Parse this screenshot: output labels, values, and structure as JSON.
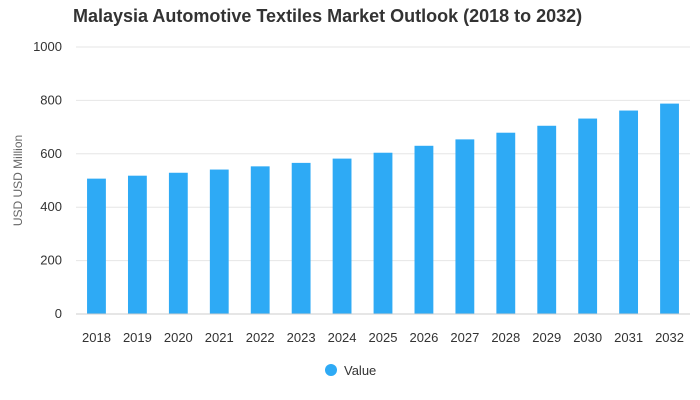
{
  "chart_data": {
    "type": "bar",
    "title": "Malaysia Automotive Textiles Market Outlook (2018 to 2032)",
    "xlabel": "",
    "ylabel": "USD USD Million",
    "ylim": [
      0,
      1000
    ],
    "yticks": [
      0,
      200,
      400,
      600,
      800,
      1000
    ],
    "grid": true,
    "legend_position": "bottom-center",
    "categories": [
      "2018",
      "2019",
      "2020",
      "2021",
      "2022",
      "2023",
      "2024",
      "2025",
      "2026",
      "2027",
      "2028",
      "2029",
      "2030",
      "2031",
      "2032"
    ],
    "series": [
      {
        "name": "Value",
        "color": "#2eaaf5",
        "values": [
          507,
          518,
          529,
          541,
          553,
          566,
          582,
          604,
          630,
          654,
          679,
          705,
          732,
          762,
          788
        ]
      }
    ]
  }
}
